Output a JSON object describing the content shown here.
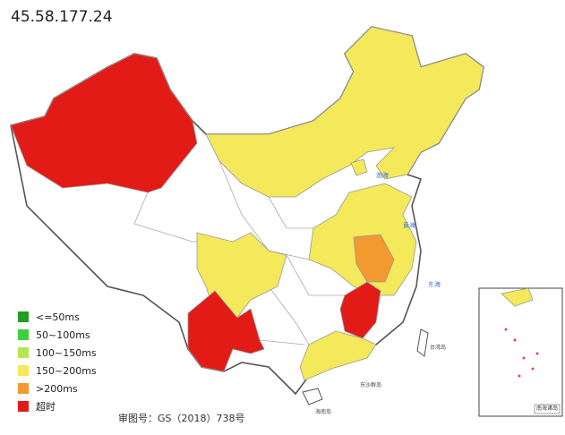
{
  "title": "45.58.177.24",
  "legend": [
    {
      "label": "<=50ms",
      "color": "#1f9e1f"
    },
    {
      "label": "50~100ms",
      "color": "#3ecf3e"
    },
    {
      "label": "100~150ms",
      "color": "#b5e655"
    },
    {
      "label": "150~200ms",
      "color": "#f3e95a"
    },
    {
      "label": ">200ms",
      "color": "#f29a30"
    },
    {
      "label": "超时",
      "color": "#e31b17"
    }
  ],
  "map_labels": {
    "bohai": "渤海",
    "huanghai": "黄海",
    "donghai": "东海",
    "taiwan": "台湾岛",
    "hainan": "海南岛",
    "dongsha": "东沙群岛",
    "inset": "南海诸岛"
  },
  "credit": "审图号：GS（2018）738号"
}
